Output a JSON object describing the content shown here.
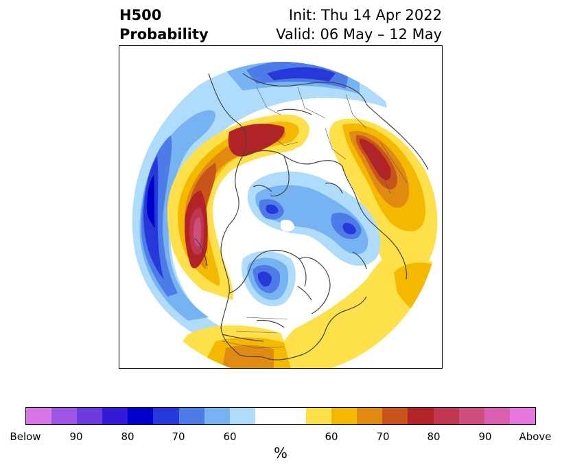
{
  "title": {
    "left_line1": "H500",
    "left_line2": "Probability",
    "right_line1": "Init: Thu 14 Apr 2022",
    "right_line2": "Valid: 06 May – 12 May"
  },
  "colorbar": {
    "label": "%",
    "ticks": [
      "Below",
      "90",
      "80",
      "70",
      "60",
      "60",
      "70",
      "80",
      "90",
      "Above"
    ],
    "colors": [
      "#d774e8",
      "#9f55e4",
      "#6a3cdc",
      "#3419d6",
      "#0000cc",
      "#2738da",
      "#4d7be8",
      "#77b2f2",
      "#aedcfa",
      "#ffffff",
      "#ffffff",
      "#fde04a",
      "#f5b800",
      "#e08a12",
      "#c85419",
      "#b12326",
      "#c0364f",
      "#cc4f7e",
      "#da5fb0",
      "#e878e0"
    ]
  },
  "map": {
    "projection": "north-polar-stereographic",
    "anomaly_colors": {
      "blue_light": "#aedcfa",
      "blue_mid": "#77b2f2",
      "blue": "#4d7be8",
      "blue_deep": "#2738da",
      "blue_core": "#0000cc",
      "yellow": "#fde04a",
      "orange": "#f5b800",
      "orange_dark": "#e08a12",
      "rust": "#c85419",
      "red": "#b12326",
      "rose": "#c0364f",
      "pink": "#cc4f7e"
    }
  }
}
